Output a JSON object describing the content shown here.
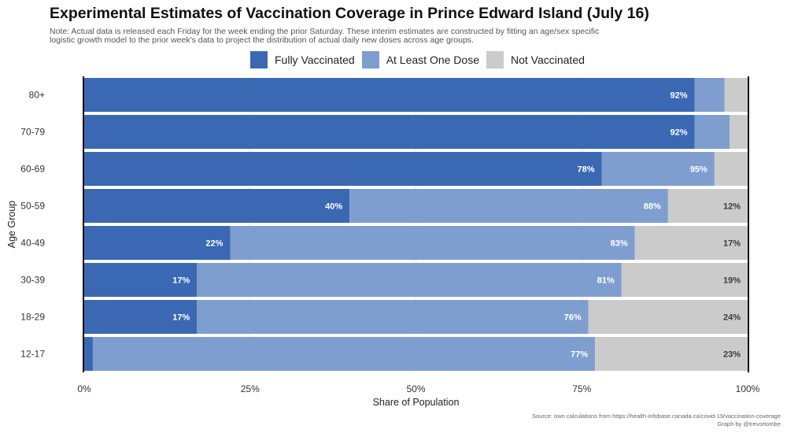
{
  "title": "Experimental Estimates of Vaccination Coverage in Prince Edward Island (July 16)",
  "subtitle": "Note: Actual data is released each Friday for the week ending the prior Saturday. These interim estimates are constructed by fitting an age/sex specific logistic growth model to the prior week's data to project the distribution of actual daily new doses across age groups.",
  "source_line1": "Source: own calculations from https://health-infobase.canada.ca/covid-19/vaccination-coverage",
  "source_line2": "Graph by @trevortombe",
  "colors": {
    "fully": "#3a68b3",
    "at_least_one": "#7f9ed0",
    "not_vaccinated": "#cbcbcb",
    "label_light": "#ffffff",
    "label_dark": "#3a3a3a"
  },
  "chart_data": {
    "type": "bar",
    "orientation": "horizontal",
    "stacked": true,
    "title": "Experimental Estimates of Vaccination Coverage in Prince Edward Island (July 16)",
    "xlabel": "Share of Population",
    "ylabel": "Age Group",
    "xlim": [
      0,
      100
    ],
    "x_ticks": [
      "0%",
      "25%",
      "50%",
      "75%",
      "100%"
    ],
    "legend_position": "top",
    "categories": [
      "80+",
      "70-79",
      "60-69",
      "50-59",
      "40-49",
      "30-39",
      "18-29",
      "12-17"
    ],
    "series": [
      {
        "name": "Fully Vaccinated",
        "cumulative": [
          92,
          92,
          78,
          40,
          22,
          17,
          17,
          1.3
        ],
        "labels": [
          "92%",
          "92%",
          "78%",
          "40%",
          "22%",
          "17%",
          "17%",
          ""
        ]
      },
      {
        "name": "At Least One Dose",
        "cumulative": [
          96.5,
          97.3,
          95,
          88,
          83,
          81,
          76,
          77
        ],
        "labels": [
          "",
          "",
          "95%",
          "88%",
          "83%",
          "81%",
          "76%",
          "77%"
        ]
      },
      {
        "name": "Not Vaccinated",
        "values": [
          3.5,
          2.7,
          5,
          12,
          17,
          19,
          24,
          23
        ],
        "labels": [
          "",
          "",
          "",
          "12%",
          "17%",
          "19%",
          "24%",
          "23%"
        ]
      }
    ]
  }
}
